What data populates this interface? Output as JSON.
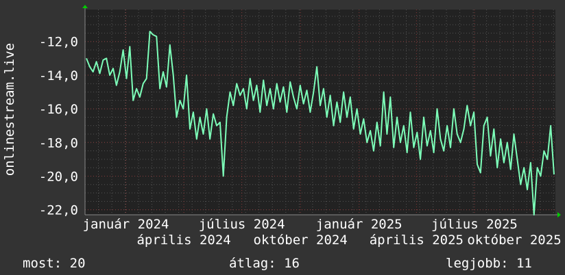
{
  "chart_data": {
    "type": "line",
    "title": "",
    "ylabel": "onlinestream.live",
    "xlabel": "",
    "ylim": [
      -22.3,
      -10.1
    ],
    "x_range": [
      "2023-10-29",
      "2025-11-05"
    ],
    "y_ticks": [
      "-12,0",
      "-14,0",
      "-16,0",
      "-18,0",
      "-20,0",
      "-22,0"
    ],
    "y_tick_values": [
      -12,
      -14,
      -16,
      -18,
      -20,
      -22
    ],
    "x_ticks": [
      "január 2024",
      "április 2024",
      "július 2024",
      "október 2024",
      "január 2025",
      "április 2025",
      "július 2025",
      "október 2025"
    ],
    "x_tick_dates": [
      "2024-01-01",
      "2024-04-01",
      "2024-07-01",
      "2024-10-01",
      "2025-01-01",
      "2025-04-01",
      "2025-07-01",
      "2025-10-01"
    ],
    "grid": true,
    "line_color": "#7dffb9",
    "values": [
      -13.0,
      -13.5,
      -13.8,
      -13.2,
      -13.9,
      -13.1,
      -13.0,
      -14.0,
      -13.6,
      -14.6,
      -13.8,
      -12.5,
      -14.2,
      -12.3,
      -15.5,
      -14.8,
      -15.3,
      -14.5,
      -14.2,
      -11.4,
      -11.6,
      -11.7,
      -14.8,
      -13.8,
      -14.7,
      -12.2,
      -14.0,
      -16.5,
      -15.5,
      -16.0,
      -14.0,
      -17.2,
      -16.2,
      -17.8,
      -16.5,
      -17.5,
      -16.0,
      -17.8,
      -16.3,
      -17.0,
      -16.8,
      -20.0,
      -16.5,
      -15.0,
      -15.8,
      -14.5,
      -15.2,
      -14.8,
      -16.0,
      -14.2,
      -15.5,
      -14.6,
      -16.2,
      -14.3,
      -15.8,
      -14.8,
      -16.0,
      -14.5,
      -15.6,
      -14.7,
      -16.2,
      -14.4,
      -15.3,
      -16.0,
      -14.6,
      -15.7,
      -14.9,
      -16.2,
      -15.0,
      -13.5,
      -15.8,
      -14.8,
      -16.5,
      -15.2,
      -17.0,
      -15.6,
      -16.8,
      -15.0,
      -16.5,
      -15.3,
      -17.2,
      -16.0,
      -17.5,
      -16.6,
      -18.0,
      -17.3,
      -18.5,
      -16.8,
      -18.2,
      -15.0,
      -17.5,
      -15.3,
      -18.3,
      -16.5,
      -18.0,
      -17.0,
      -18.6,
      -16.2,
      -18.3,
      -17.4,
      -19.0,
      -16.5,
      -18.2,
      -17.3,
      -18.6,
      -16.0,
      -17.8,
      -18.5,
      -17.0,
      -18.3,
      -16.0,
      -17.5,
      -18.0,
      -17.2,
      -15.8,
      -17.0,
      -16.2,
      -19.3,
      -19.8,
      -17.0,
      -16.5,
      -18.8,
      -17.2,
      -19.5,
      -17.8,
      -19.2,
      -18.0,
      -19.6,
      -17.5,
      -19.0,
      -20.5,
      -19.5,
      -20.8,
      -19.2,
      -22.3,
      -19.5,
      -20.0,
      -18.5,
      -19.0,
      -17.0,
      -19.9
    ]
  },
  "legend": {
    "current": "most: 20",
    "average": "átlag: 16",
    "best": "legjobb: 11"
  }
}
